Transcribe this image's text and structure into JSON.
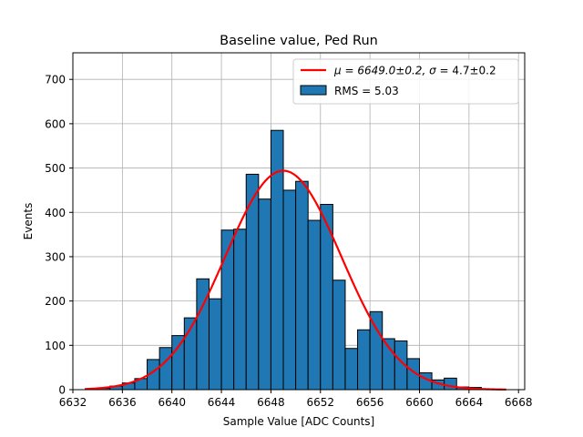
{
  "chart_data": {
    "type": "bar",
    "title": "Baseline value, Ped Run",
    "xlabel": "Sample Value [ADC Counts]",
    "ylabel": "Events",
    "xlim": [
      6632,
      6668.5
    ],
    "ylim": [
      0,
      760
    ],
    "xticks": [
      6632,
      6636,
      6640,
      6644,
      6648,
      6652,
      6656,
      6660,
      6664,
      6668
    ],
    "yticks": [
      0,
      100,
      200,
      300,
      400,
      500,
      600,
      700
    ],
    "grid": true,
    "legend_position": "top-right",
    "histogram": {
      "name": "RMS = 5.03",
      "color": "#1f77b4",
      "edge_color": "#000000",
      "bin_edges": [
        6633,
        6634,
        6635,
        6636,
        6637,
        6638,
        6639,
        6640,
        6641,
        6642,
        6643,
        6644,
        6645,
        6646,
        6647,
        6648,
        6649,
        6650,
        6651,
        6652,
        6653,
        6654,
        6655,
        6656,
        6657,
        6658,
        6659,
        6660,
        6661,
        6662,
        6663,
        6664,
        6665,
        6666
      ],
      "counts": [
        2,
        3,
        8,
        15,
        25,
        68,
        95,
        122,
        162,
        250,
        205,
        360,
        362,
        486,
        430,
        585,
        450,
        470,
        382,
        418,
        247,
        93,
        135,
        176,
        115,
        110,
        70,
        38,
        22,
        26,
        6,
        5,
        2
      ]
    },
    "fit": {
      "name_prefix": "μ = 6649.0±0.2, ",
      "name_sigma": "σ",
      "name_suffix": " = 4.7±0.2",
      "color": "#ff0000",
      "mu": 6649.0,
      "sigma": 4.7,
      "amplitude": 494,
      "x_range": [
        6633,
        6667
      ]
    }
  }
}
